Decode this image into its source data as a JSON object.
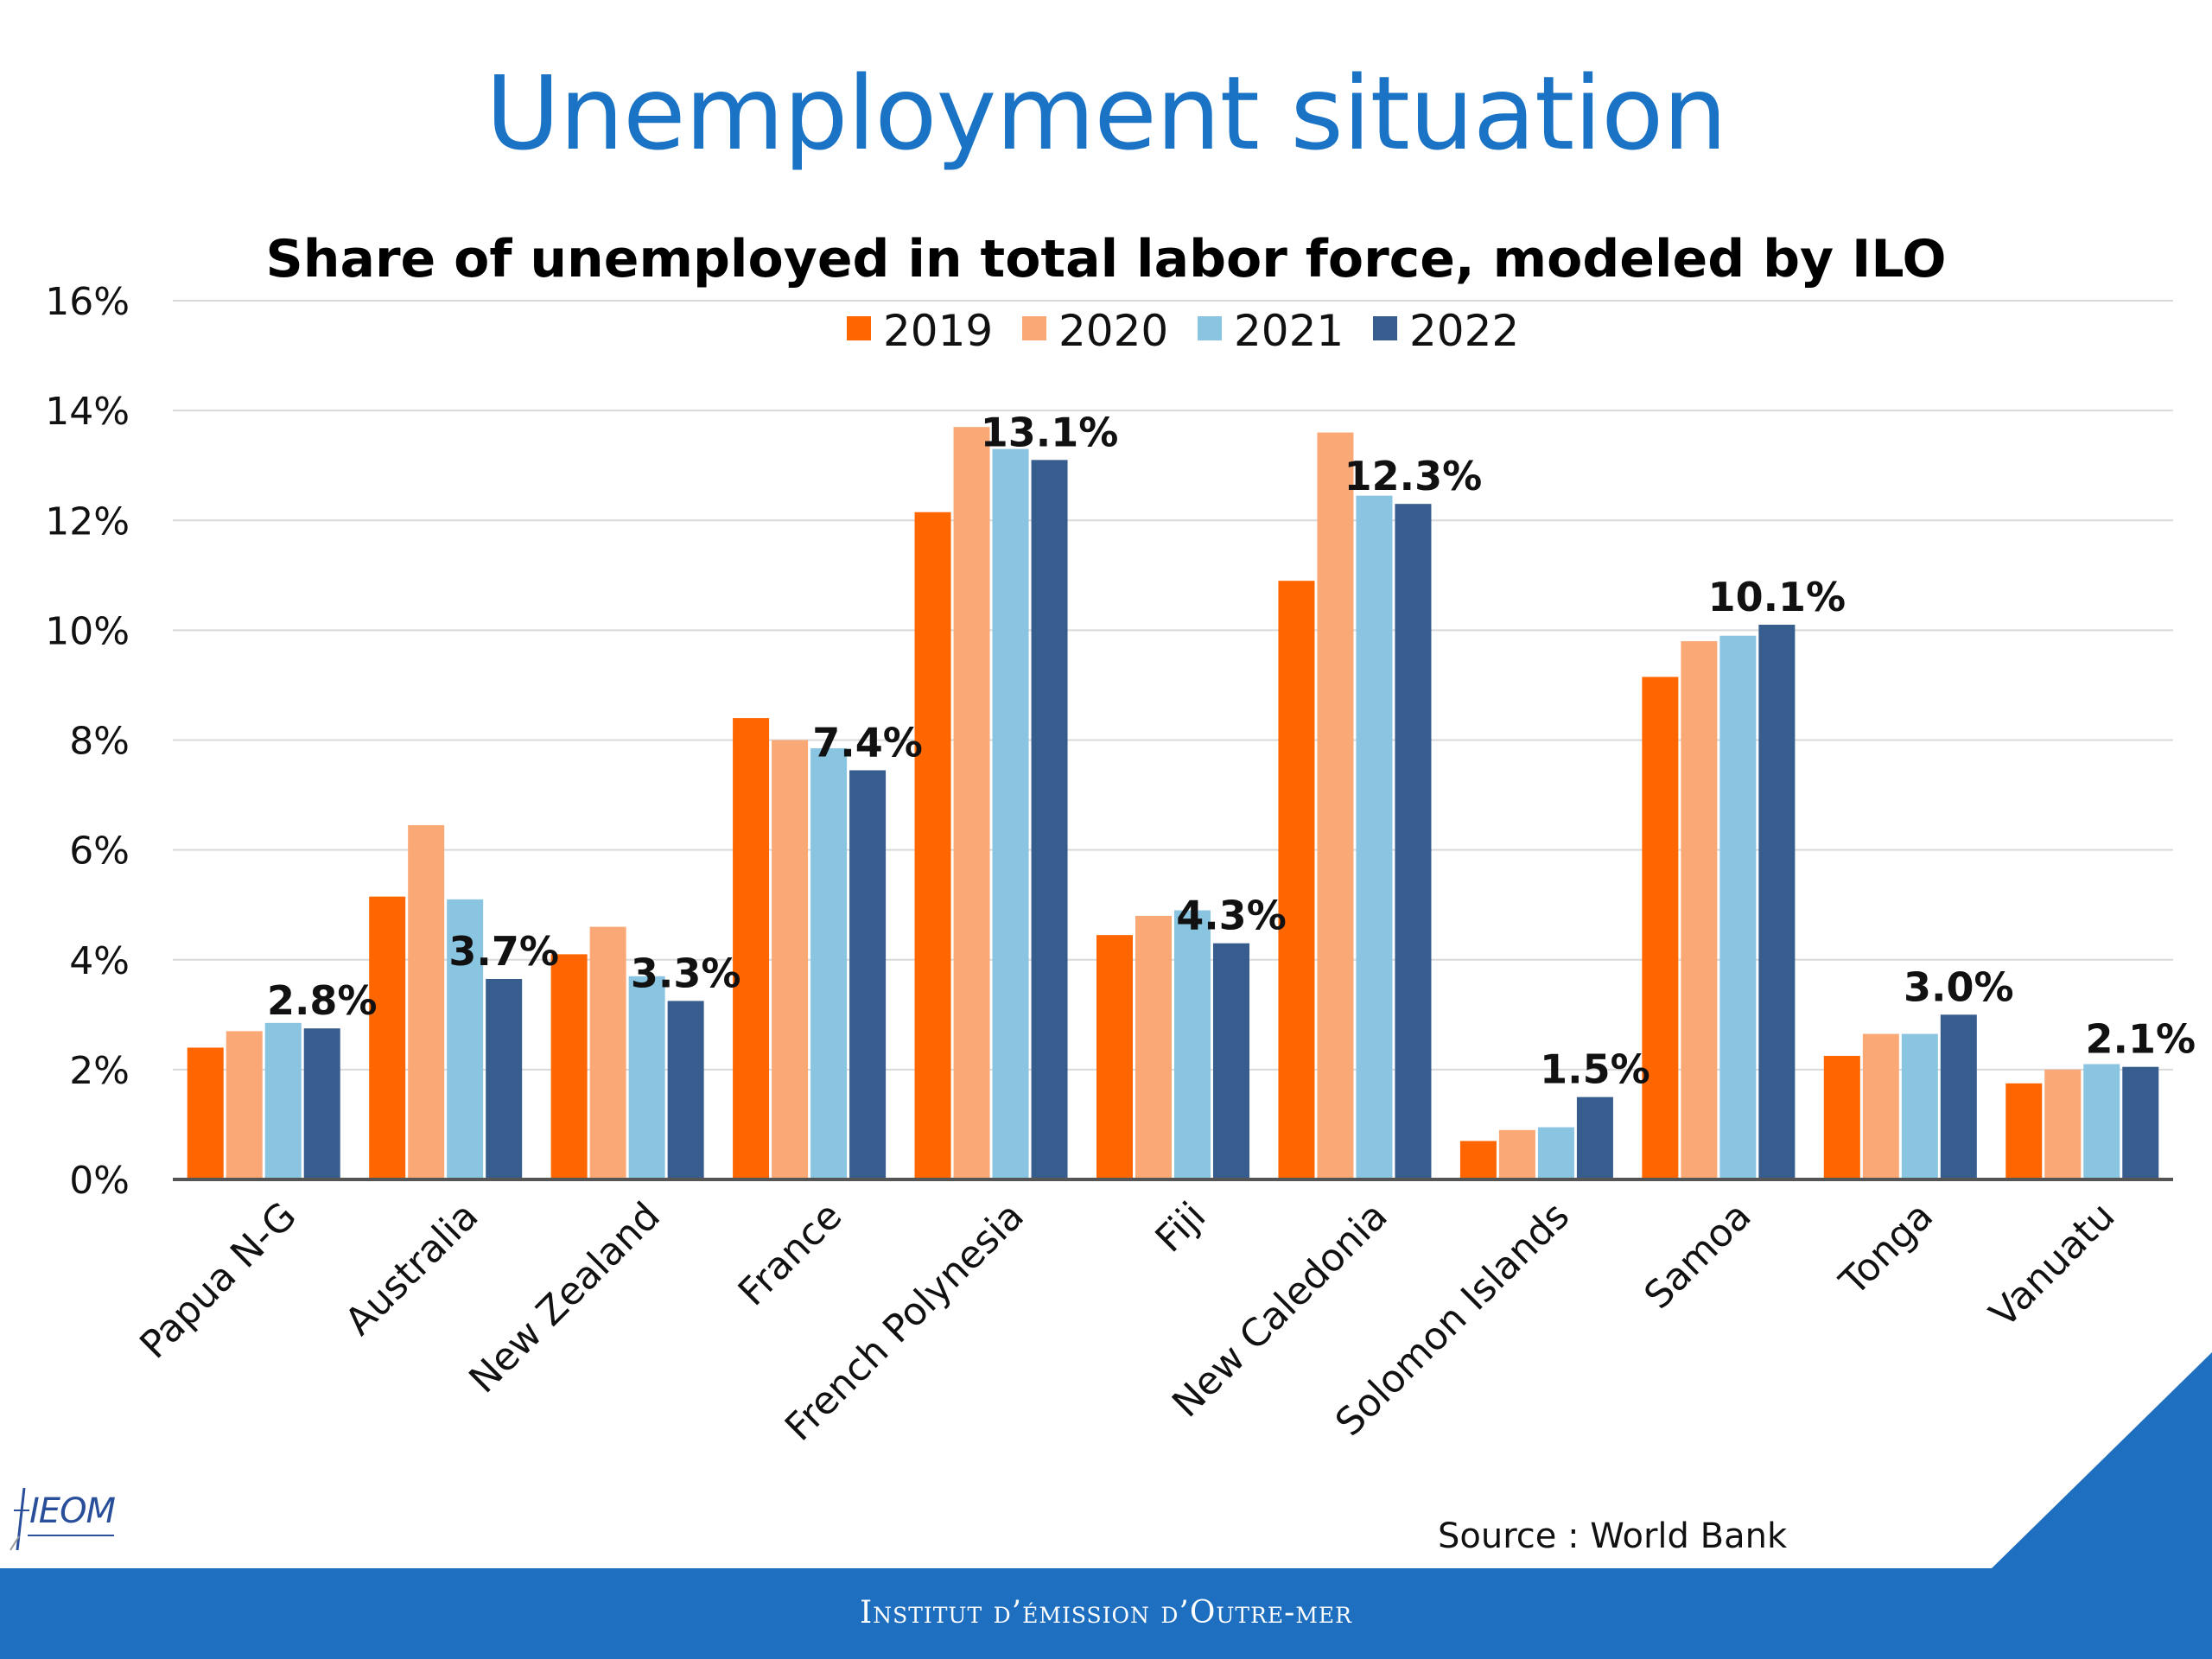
{
  "slide": {
    "title": "Unemployment situation",
    "source": "Source : World Bank",
    "footer": "Institut d’émission d’Outre-mer",
    "logo_text": "IEOM"
  },
  "colors": {
    "title": "#1a73c4",
    "footer_bar": "#1f6fc0",
    "grid": "#d9d9d9",
    "axis": "#555555"
  },
  "chart_data": {
    "type": "bar",
    "title": "Share of unemployed in total labor force, modeled by ILO",
    "xlabel": "",
    "ylabel": "",
    "ylim": [
      0,
      16
    ],
    "yticks": [
      0,
      2,
      4,
      6,
      8,
      10,
      12,
      14,
      16
    ],
    "ytick_labels": [
      "0%",
      "2%",
      "4%",
      "6%",
      "8%",
      "10%",
      "12%",
      "14%",
      "16%"
    ],
    "grid": true,
    "legend_position": "top-center",
    "categories": [
      "Papua N-G",
      "Australia",
      "New Zealand",
      "France",
      "French Polynesia",
      "Fiji",
      "New Caledonia",
      "Solomon Islands",
      "Samoa",
      "Tonga",
      "Vanuatu"
    ],
    "series": [
      {
        "name": "2019",
        "color": "#ff6600",
        "values": [
          2.4,
          5.15,
          4.1,
          8.4,
          12.15,
          4.45,
          10.9,
          0.7,
          9.15,
          2.25,
          1.75
        ]
      },
      {
        "name": "2020",
        "color": "#f9a876",
        "values": [
          2.7,
          6.45,
          4.6,
          8.0,
          13.7,
          4.8,
          13.6,
          0.9,
          9.8,
          2.65,
          2.0
        ]
      },
      {
        "name": "2021",
        "color": "#89c4e1",
        "values": [
          2.85,
          5.1,
          3.7,
          7.85,
          13.3,
          4.9,
          12.45,
          0.95,
          9.9,
          2.65,
          2.1
        ]
      },
      {
        "name": "2022",
        "color": "#365d8e",
        "values": [
          2.75,
          3.65,
          3.25,
          7.45,
          13.1,
          4.3,
          12.3,
          1.5,
          10.1,
          3.0,
          2.05
        ]
      }
    ],
    "data_labels": [
      "2.8%",
      "3.7%",
      "3.3%",
      "7.4%",
      "13.1%",
      "4.3%",
      "12.3%",
      "1.5%",
      "10.1%",
      "3.0%",
      "2.1%"
    ]
  }
}
